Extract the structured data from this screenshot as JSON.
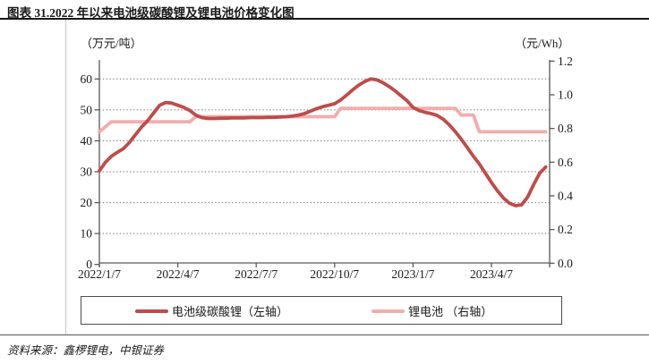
{
  "title": "图表 31.2022 年以来电池级碳酸锂及锂电池价格变化图",
  "source_note": "资料来源：鑫椤锂电，中银证券",
  "left_unit": "（万元/吨）",
  "right_unit": "（元/Wh）",
  "legend": {
    "item1": "电池级碳酸锂（左轴）",
    "item2": "锂电池 （右轴）"
  },
  "colors": {
    "carbonate_line": "#bf4c49",
    "battery_line": "#f2adab",
    "axis": "#595959",
    "gridline": "#737373",
    "text": "#1a1a1a"
  },
  "chart_data": {
    "type": "line",
    "title": "2022年以来电池级碳酸锂及锂电池价格变化",
    "grid": true,
    "legend_position": "bottom",
    "x_tick_labels": [
      "2022/1/7",
      "2022/4/7",
      "2022/7/7",
      "2022/10/7",
      "2023/1/7",
      "2023/4/7"
    ],
    "left_axis": {
      "unit": "万元/吨",
      "range": [
        0,
        60
      ],
      "ticks": [
        0,
        10,
        20,
        30,
        40,
        50,
        60
      ]
    },
    "right_axis": {
      "unit": "元/Wh",
      "range": [
        0,
        1.2
      ],
      "tick_labels": [
        "0.0",
        "0.2",
        "0.4",
        "0.6",
        "0.8",
        "1.0",
        "1.2"
      ]
    },
    "x": [
      "2022/1/7",
      "2022/1/14",
      "2022/1/21",
      "2022/1/28",
      "2022/2/4",
      "2022/2/11",
      "2022/2/18",
      "2022/2/25",
      "2022/3/4",
      "2022/3/11",
      "2022/3/18",
      "2022/3/25",
      "2022/4/1",
      "2022/4/8",
      "2022/4/15",
      "2022/4/22",
      "2022/4/29",
      "2022/5/6",
      "2022/5/13",
      "2022/5/20",
      "2022/5/27",
      "2022/6/3",
      "2022/6/10",
      "2022/6/17",
      "2022/6/24",
      "2022/7/1",
      "2022/7/8",
      "2022/7/15",
      "2022/7/22",
      "2022/7/29",
      "2022/8/5",
      "2022/8/12",
      "2022/8/19",
      "2022/8/26",
      "2022/9/2",
      "2022/9/9",
      "2022/9/16",
      "2022/9/23",
      "2022/9/30",
      "2022/10/7",
      "2022/10/14",
      "2022/10/21",
      "2022/10/28",
      "2022/11/4",
      "2022/11/11",
      "2022/11/18",
      "2022/11/25",
      "2022/12/2",
      "2022/12/9",
      "2022/12/16",
      "2022/12/23",
      "2022/12/30",
      "2023/1/6",
      "2023/1/13",
      "2023/1/20",
      "2023/1/27",
      "2023/2/3",
      "2023/2/10",
      "2023/2/17",
      "2023/2/24",
      "2023/3/3",
      "2023/3/10",
      "2023/3/17",
      "2023/3/24",
      "2023/3/31",
      "2023/4/7",
      "2023/4/14",
      "2023/4/21",
      "2023/4/28",
      "2023/5/5",
      "2023/5/12",
      "2023/5/19",
      "2023/5/26",
      "2023/6/2",
      "2023/6/9"
    ],
    "series": [
      {
        "name": "锂电池（右轴）",
        "axis": "right",
        "color": "#f2adab",
        "values": [
          0.78,
          0.81,
          0.84,
          0.84,
          0.84,
          0.84,
          0.84,
          0.84,
          0.84,
          0.84,
          0.84,
          0.84,
          0.84,
          0.84,
          0.84,
          0.84,
          0.87,
          0.87,
          0.87,
          0.87,
          0.87,
          0.87,
          0.87,
          0.87,
          0.87,
          0.87,
          0.87,
          0.87,
          0.87,
          0.87,
          0.87,
          0.87,
          0.87,
          0.87,
          0.87,
          0.87,
          0.87,
          0.87,
          0.87,
          0.87,
          0.92,
          0.92,
          0.92,
          0.92,
          0.92,
          0.92,
          0.92,
          0.92,
          0.92,
          0.92,
          0.92,
          0.92,
          0.92,
          0.92,
          0.92,
          0.92,
          0.92,
          0.92,
          0.92,
          0.92,
          0.88,
          0.88,
          0.88,
          0.78,
          0.78,
          0.78,
          0.78,
          0.78,
          0.78,
          0.78,
          0.78,
          0.78,
          0.78,
          0.78,
          0.78
        ]
      },
      {
        "name": "电池级碳酸锂（左轴）",
        "axis": "left",
        "color": "#bf4c49",
        "values": [
          30.3,
          33.0,
          35.0,
          36.3,
          37.5,
          39.5,
          42.0,
          44.5,
          46.5,
          49.0,
          51.5,
          52.4,
          52.2,
          51.5,
          50.8,
          49.8,
          48.3,
          47.5,
          47.2,
          47.2,
          47.3,
          47.3,
          47.4,
          47.4,
          47.4,
          47.5,
          47.5,
          47.5,
          47.6,
          47.6,
          47.7,
          47.8,
          48.0,
          48.3,
          48.8,
          49.6,
          50.4,
          51.0,
          51.5,
          52.0,
          53.2,
          54.8,
          56.5,
          58.0,
          59.2,
          60.0,
          59.7,
          58.8,
          57.6,
          56.2,
          54.6,
          53.0,
          50.8,
          49.8,
          49.2,
          48.8,
          48.2,
          47.0,
          45.2,
          43.0,
          40.5,
          37.8,
          35.0,
          32.5,
          29.5,
          26.5,
          23.8,
          21.5,
          19.8,
          19.0,
          19.3,
          21.8,
          25.8,
          29.5,
          31.5
        ]
      }
    ]
  }
}
